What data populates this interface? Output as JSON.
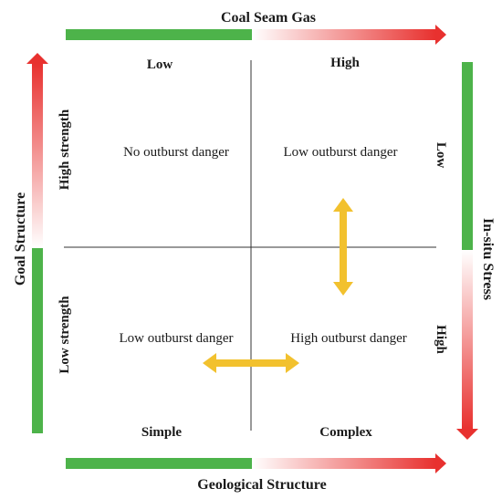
{
  "colors": {
    "green": "#4db34a",
    "red": "#e8312f",
    "yellow": "#f2c12e",
    "line": "#333333"
  },
  "top_axis": {
    "title": "Coal Seam Gas",
    "low": "Low",
    "high": "High"
  },
  "bottom_axis": {
    "title": "Geological Structure",
    "low": "Simple",
    "high": "Complex"
  },
  "left_axis": {
    "title": "Goal Structure",
    "high": "High strength",
    "low": "Low strength"
  },
  "right_axis": {
    "title": "In-situ Stress",
    "low": "Low",
    "high": "High"
  },
  "quadrants": {
    "top_left": "No outburst danger",
    "top_right": "Low outburst danger",
    "bottom_left": "Low outburst danger",
    "bottom_right": "High outburst danger"
  },
  "icons": {
    "vertical_arrow": "double-headed-vertical-arrow",
    "horizontal_arrow": "double-headed-horizontal-arrow"
  }
}
